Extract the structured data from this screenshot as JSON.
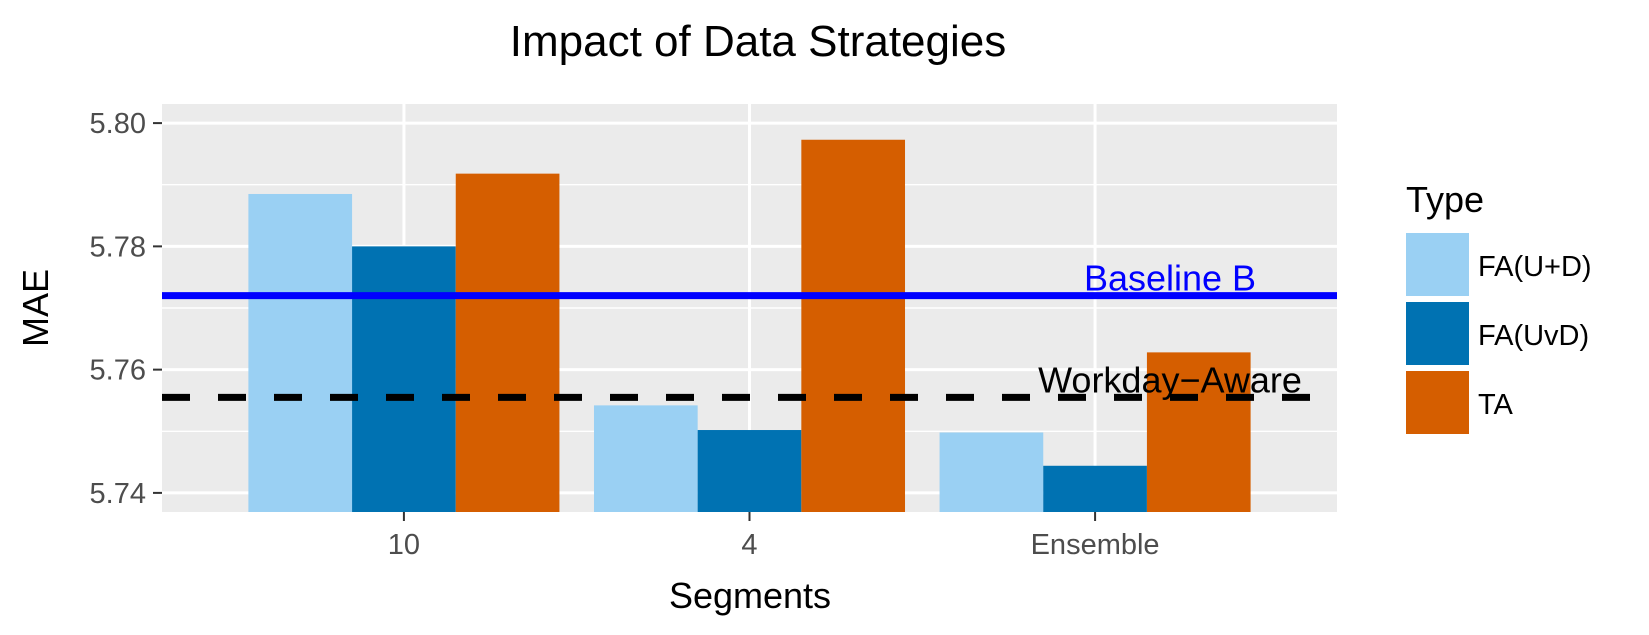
{
  "chart_data": {
    "type": "bar",
    "title": "Impact of Data Strategies",
    "xlabel": "Segments",
    "ylabel": "MAE",
    "categories": [
      "10",
      "4",
      "Ensemble"
    ],
    "series": [
      {
        "name": "FA(U+D)",
        "color": "#9ad0f3",
        "values": [
          5.7885,
          5.7542,
          5.7498
        ]
      },
      {
        "name": "FA(UvD)",
        "color": "#0072b2",
        "values": [
          5.78,
          5.7502,
          5.7444
        ]
      },
      {
        "name": "TA",
        "color": "#d55e00",
        "values": [
          5.7918,
          5.7973,
          5.7628
        ]
      }
    ],
    "ylim": [
      5.7369,
      5.8031
    ],
    "yticks": [
      "5.74",
      "5.76",
      "5.78",
      "5.80"
    ],
    "legend_title": "Type",
    "legend_position": "right",
    "grid": true,
    "reference_lines": [
      {
        "label": "Baseline B",
        "value": 5.772,
        "color": "#0000ff",
        "style": "solid"
      },
      {
        "label": "Workday−Aware",
        "value": 5.7555,
        "color": "#000000",
        "style": "dashed"
      }
    ]
  }
}
